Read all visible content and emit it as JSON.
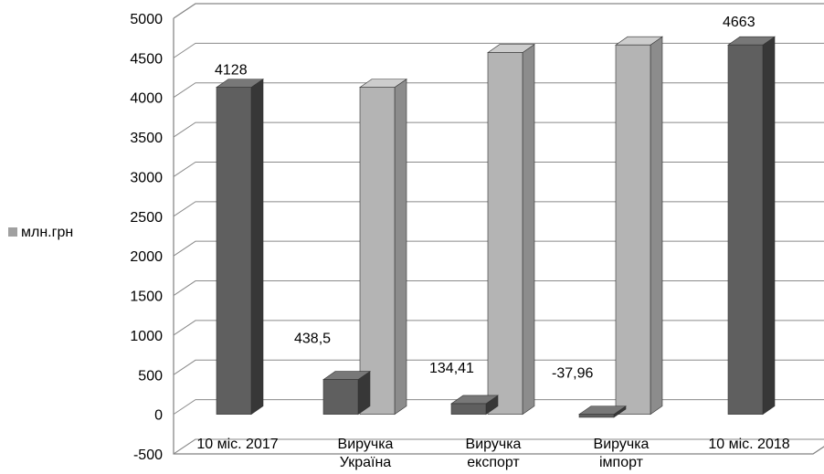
{
  "chart_data": {
    "type": "bar",
    "title": "",
    "xlabel": "",
    "ylabel": "",
    "ylim": [
      -500,
      5000
    ],
    "y_ticks": [
      "-500",
      "0",
      "500",
      "1000",
      "1500",
      "2000",
      "2500",
      "3000",
      "3500",
      "4000",
      "4500",
      "5000"
    ],
    "categories": [
      [
        "10 міс. 2017"
      ],
      [
        "Виручка",
        "Україна"
      ],
      [
        "Виручка",
        "експорт"
      ],
      [
        "Виручка",
        "імпорт"
      ],
      [
        "10 міс. 2018"
      ]
    ],
    "series": [
      {
        "name": "млн.грн",
        "values": [
          4128,
          438.5,
          134.41,
          -37.96,
          4663
        ],
        "labels": [
          "4128",
          "438,5",
          "134,41",
          "-37,96",
          "4663"
        ],
        "color": "#5f5f5f"
      }
    ],
    "base_bars": [
      null,
      4128,
      4566.5,
      4700.91,
      null
    ],
    "base_color": "#b4b4b4",
    "grid": true,
    "legend_position": "left",
    "chart_style": "3d-waterfall"
  }
}
